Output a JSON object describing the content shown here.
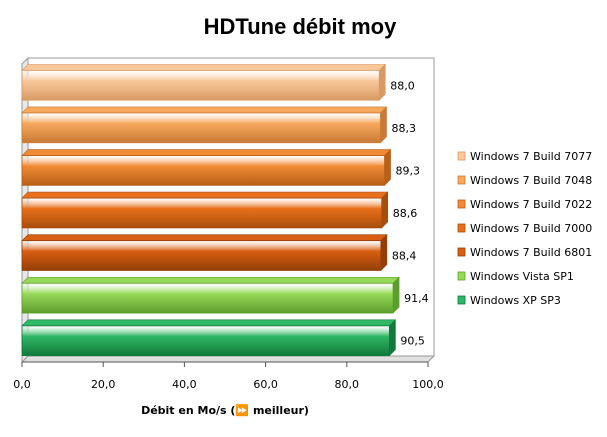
{
  "chart_data": {
    "type": "bar",
    "orientation": "horizontal",
    "title": "HDTune débit moy",
    "xlabel": "Débit en Mo/s (⏩ meilleur)",
    "ylabel": "",
    "xlim": [
      0,
      100
    ],
    "x_ticks": [
      "0,0",
      "20,0",
      "40,0",
      "60,0",
      "80,0",
      "100,0"
    ],
    "grid": false,
    "legend_position": "right",
    "series": [
      {
        "name": "Windows 7 Build 7077",
        "value": 88.0,
        "label": "88,0",
        "color": "#f8c89a",
        "edge": "#d89a63"
      },
      {
        "name": "Windows 7 Build 7048",
        "value": 88.3,
        "label": "88,3",
        "color": "#f6a85d",
        "edge": "#c97a35"
      },
      {
        "name": "Windows 7 Build 7022",
        "value": 89.3,
        "label": "89,3",
        "color": "#f08a35",
        "edge": "#b85f18"
      },
      {
        "name": "Windows 7 Build 7000",
        "value": 88.6,
        "label": "88,6",
        "color": "#e8701c",
        "edge": "#a84d0c"
      },
      {
        "name": "Windows 7 Build 6801",
        "value": 88.4,
        "label": "88,4",
        "color": "#d85e12",
        "edge": "#943f08"
      },
      {
        "name": "Windows Vista SP1",
        "value": 91.4,
        "label": "91,4",
        "color": "#96d95a",
        "edge": "#5c9e2a"
      },
      {
        "name": "Windows XP SP3",
        "value": 90.5,
        "label": "90,5",
        "color": "#2fb865",
        "edge": "#11793b"
      }
    ]
  }
}
